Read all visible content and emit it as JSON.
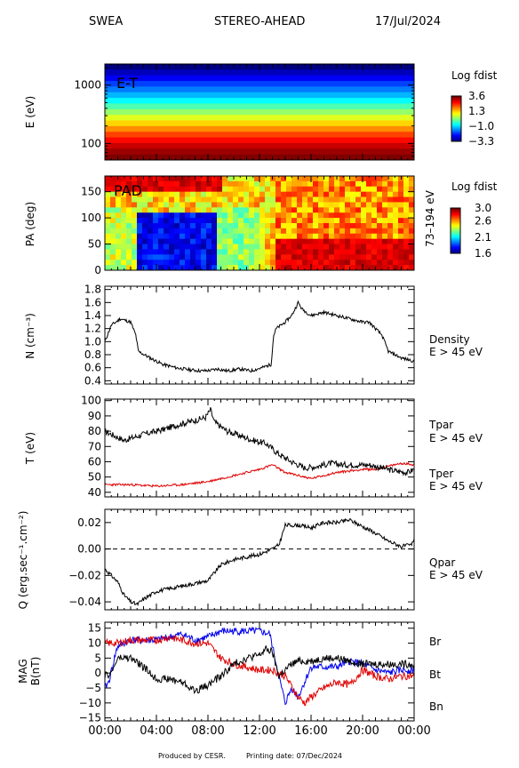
{
  "header": {
    "instrument": "SWEA",
    "spacecraft": "STEREO-AHEAD",
    "date": "17/Jul/2024"
  },
  "footer": {
    "produced_by": "Produced by CESR.",
    "printing_date": "Printing date: 07/Dec/2024"
  },
  "time_axis": {
    "ticks": [
      "00:00",
      "04:00",
      "08:00",
      "12:00",
      "16:00",
      "20:00",
      "00:00"
    ]
  },
  "colors": {
    "red_series": "#e00000",
    "blue_series": "#0000ee"
  },
  "chart_data": [
    {
      "type": "heatmap",
      "panel_label": "E-T",
      "ylabel": "E (eV)",
      "yscale": "log",
      "y_ticks": [
        "1000",
        "100"
      ],
      "colorbar_title": "Log fdist",
      "colorbar_ticks": [
        "3.6",
        "1.3",
        "−1.0",
        "−3.3"
      ],
      "colorbar_range": [
        -3.3,
        3.6
      ],
      "energy_levels_ev": [
        3000,
        2300,
        1800,
        1400,
        1100,
        850,
        650,
        500,
        390,
        300,
        230,
        180,
        140,
        110,
        85,
        65,
        50
      ],
      "log_fdist_by_level": [
        -3.3,
        -2.9,
        -2.5,
        -2.0,
        -1.6,
        -1.2,
        -0.7,
        -0.2,
        0.3,
        0.8,
        1.3,
        1.8,
        2.3,
        2.7,
        3.1,
        3.4,
        3.6
      ]
    },
    {
      "type": "heatmap",
      "panel_label": "PAD",
      "ylabel": "PA (deg)",
      "right_label": "73–194 eV",
      "y_ticks": [
        "150",
        "100",
        "50",
        "0"
      ],
      "ylim": [
        0,
        180
      ],
      "colorbar_title": "Log fdist",
      "colorbar_ticks": [
        "3.0",
        "2.6",
        "2.1",
        "1.6"
      ],
      "colorbar_range": [
        1.6,
        3.0
      ]
    },
    {
      "type": "line",
      "ylabel": "N (cm⁻³)",
      "right_labels": [
        "Density",
        "E > 45 eV"
      ],
      "ylim": [
        0.35,
        1.85
      ],
      "y_ticks": [
        "1.8",
        "1.6",
        "1.4",
        "1.2",
        "1.0",
        "0.8",
        "0.6",
        "0.4"
      ],
      "series": [
        {
          "x_hours": [
            0,
            0.5,
            1.2,
            2.0,
            2.4,
            2.6,
            3.5,
            4.5,
            5.5,
            6.5,
            7.5,
            8.2,
            8.8,
            9.5,
            10.5,
            11.3,
            12.2,
            12.9,
            13.1,
            13.3,
            14.0,
            14.5,
            15.0,
            15.3,
            16.0,
            17.0,
            18.0,
            19.0,
            20.0,
            20.5,
            21.5,
            22.0,
            23.0,
            24.0
          ],
          "y": [
            1.0,
            1.25,
            1.35,
            1.3,
            1.1,
            0.85,
            0.75,
            0.65,
            0.6,
            0.57,
            0.55,
            0.56,
            0.58,
            0.55,
            0.58,
            0.55,
            0.6,
            0.65,
            1.1,
            1.2,
            1.3,
            1.4,
            1.6,
            1.5,
            1.4,
            1.45,
            1.4,
            1.35,
            1.3,
            1.3,
            1.1,
            0.85,
            0.75,
            0.7
          ]
        }
      ]
    },
    {
      "type": "line",
      "ylabel": "T (eV)",
      "ylim": [
        37,
        101
      ],
      "y_ticks": [
        "100",
        "90",
        "80",
        "70",
        "60",
        "50",
        "40"
      ],
      "series": [
        {
          "name": "Tpar",
          "sublabel": "E > 45 eV",
          "color": "#000000",
          "x_hours": [
            0,
            1.5,
            3,
            4.5,
            6,
            7,
            7.8,
            8.2,
            8.5,
            9.5,
            10.5,
            11.5,
            12.5,
            13.5,
            14.5,
            15.5,
            16.5,
            17.5,
            18.5,
            19.5,
            20.5,
            21.5,
            22.5,
            23.5,
            24.0
          ],
          "y": [
            80,
            74,
            78,
            81,
            85,
            87,
            89,
            94,
            86,
            80,
            77,
            74,
            72,
            65,
            60,
            56,
            57,
            59,
            58,
            58,
            58,
            56,
            54,
            53,
            55
          ]
        },
        {
          "name": "Tper",
          "sublabel": "E > 45 eV",
          "color": "#e00000",
          "x_hours": [
            0,
            2,
            4,
            6,
            8,
            10,
            12,
            13,
            14,
            16,
            18,
            20,
            21,
            22,
            23,
            24
          ],
          "y": [
            45,
            45,
            44,
            45,
            47,
            51,
            55,
            58,
            53,
            49,
            53,
            55,
            55,
            57,
            59,
            58
          ]
        }
      ]
    },
    {
      "type": "line",
      "ylabel": "Q (erg.sec⁻¹.cm⁻²)",
      "right_labels": [
        "Qpar",
        "E > 45 eV"
      ],
      "ylim": [
        -0.046,
        0.03
      ],
      "y_ticks": [
        "0.02",
        "0.00",
        "−0.02",
        "−0.04"
      ],
      "zero_line": true,
      "series": [
        {
          "x_hours": [
            0,
            0.5,
            1.0,
            1.5,
            2.0,
            2.5,
            3.0,
            4.0,
            5.0,
            6.0,
            7.0,
            8.0,
            8.5,
            9.0,
            10.0,
            11.0,
            12.0,
            13.0,
            13.5,
            14.0,
            15.0,
            16.0,
            17.0,
            18.0,
            19.0,
            20.0,
            21.0,
            22.0,
            23.0,
            23.8,
            24.0
          ],
          "y": [
            -0.015,
            -0.02,
            -0.025,
            -0.035,
            -0.04,
            -0.042,
            -0.038,
            -0.032,
            -0.03,
            -0.028,
            -0.026,
            -0.024,
            -0.018,
            -0.012,
            -0.008,
            -0.006,
            -0.004,
            0.0,
            0.003,
            0.018,
            0.018,
            0.016,
            0.02,
            0.02,
            0.022,
            0.017,
            0.012,
            0.006,
            0.002,
            0.003,
            0.008
          ]
        }
      ]
    },
    {
      "type": "line",
      "ylabel": "MAG B(nT)",
      "ylim": [
        -16,
        17
      ],
      "y_ticks": [
        "15",
        "10",
        "5",
        "0",
        "−5",
        "−10",
        "−15"
      ],
      "series": [
        {
          "name": "Br",
          "color": "#000000",
          "x_hours": [
            0,
            0.5,
            1,
            2,
            3,
            4,
            5,
            6,
            7,
            8,
            9,
            10,
            11,
            12,
            12.5,
            13,
            13.5,
            14,
            14.5,
            15,
            16,
            17,
            18,
            19,
            20,
            21,
            22,
            23,
            24
          ],
          "y": [
            -1,
            0,
            5,
            5,
            2,
            -2,
            -2,
            -3,
            -6,
            -4,
            -1,
            3,
            5,
            6,
            8,
            7,
            -1,
            1,
            3,
            4,
            4,
            5,
            5,
            4,
            3,
            3,
            3,
            3,
            3
          ]
        },
        {
          "name": "Bt",
          "color": "#e00000",
          "x_hours": [
            0,
            1,
            2,
            3,
            4,
            5,
            6,
            7,
            8,
            9,
            10,
            11,
            12,
            13,
            14,
            15,
            15.5,
            16,
            17,
            18,
            19,
            20,
            21,
            22,
            23,
            24
          ],
          "y": [
            10,
            10,
            11,
            11,
            11,
            12,
            11,
            10,
            10,
            5,
            3,
            2,
            1,
            1,
            -1,
            -8,
            -10,
            -8,
            -5,
            -3,
            -4,
            1,
            -1,
            -2,
            -1,
            -1
          ]
        },
        {
          "name": "Bn",
          "color": "#0000ee",
          "x_hours": [
            0,
            0.3,
            0.8,
            1,
            2,
            3,
            4,
            5,
            6,
            7,
            8,
            9,
            10,
            11,
            12,
            12.8,
            13.2,
            13.6,
            14.0,
            14.5,
            15,
            16,
            17,
            18,
            19,
            20,
            21,
            22,
            23,
            24
          ],
          "y": [
            -5,
            -3,
            6,
            9,
            11,
            11,
            11,
            12,
            13,
            11,
            12,
            14,
            14,
            14,
            14,
            13,
            5,
            -3,
            -10,
            -5,
            -8,
            2,
            2,
            2,
            4,
            3,
            1,
            0,
            1,
            1
          ]
        }
      ]
    }
  ]
}
